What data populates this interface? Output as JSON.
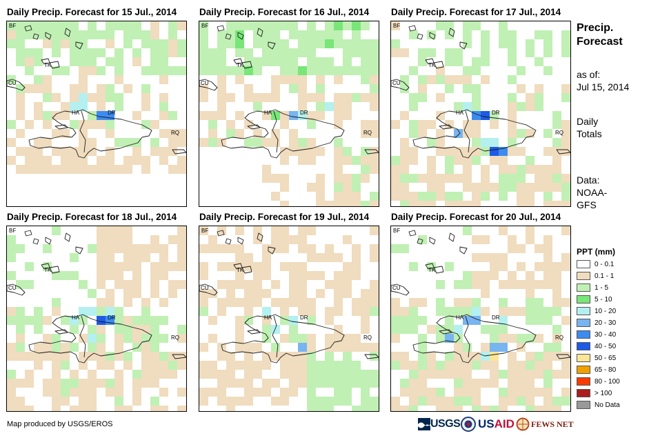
{
  "panels": [
    {
      "title": "Daily Precip. Forecast for 15 Jul., 2014"
    },
    {
      "title": "Daily Precip. Forecast for 16 Jul., 2014"
    },
    {
      "title": "Daily Precip. Forecast for 17 Jul., 2014"
    },
    {
      "title": "Daily Precip. Forecast for 18 Jul., 2014"
    },
    {
      "title": "Daily Precip. Forecast for 19 Jul., 2014"
    },
    {
      "title": "Daily Precip. Forecast for 20 Jul., 2014"
    }
  ],
  "map_labels": {
    "bf": "BF",
    "cu": "CU",
    "tk": "TK",
    "ha": "HA",
    "dr": "DR",
    "rq": "RQ"
  },
  "sidebar": {
    "heading_line1": "Precip.",
    "heading_line2": "Forecast",
    "asof_line1": "as of:",
    "asof_line2": "Jul 15, 2014",
    "totals_line1": "Daily",
    "totals_line2": "Totals",
    "data_line1": "Data:",
    "data_line2": "NOAA-",
    "data_line3": "GFS"
  },
  "legend": {
    "title": "PPT (mm)",
    "items": [
      {
        "label": "0 - 0.1",
        "color": "#ffffff"
      },
      {
        "label": "0.1 - 1",
        "color": "#f0dcbe"
      },
      {
        "label": "1 - 5",
        "color": "#c0f0b4"
      },
      {
        "label": "5 - 10",
        "color": "#78e678"
      },
      {
        "label": "10 - 20",
        "color": "#b4f0f0"
      },
      {
        "label": "20 - 30",
        "color": "#78b4f0"
      },
      {
        "label": "30 - 40",
        "color": "#3c8cf0"
      },
      {
        "label": "40 - 50",
        "color": "#1e5ae6"
      },
      {
        "label": "50 - 65",
        "color": "#fae696"
      },
      {
        "label": "65 - 80",
        "color": "#f0a000"
      },
      {
        "label": "80 - 100",
        "color": "#fa3c00"
      },
      {
        "label": "> 100",
        "color": "#aa1e1e"
      },
      {
        "label": "No Data",
        "color": "#999999"
      }
    ]
  },
  "footer": {
    "credit": "Map produced by USGS/EROS",
    "logo_usgs": "USGS",
    "logo_usaid_us": "US",
    "logo_usaid_aid": "AID",
    "logo_fews": "FEWS NET"
  }
}
